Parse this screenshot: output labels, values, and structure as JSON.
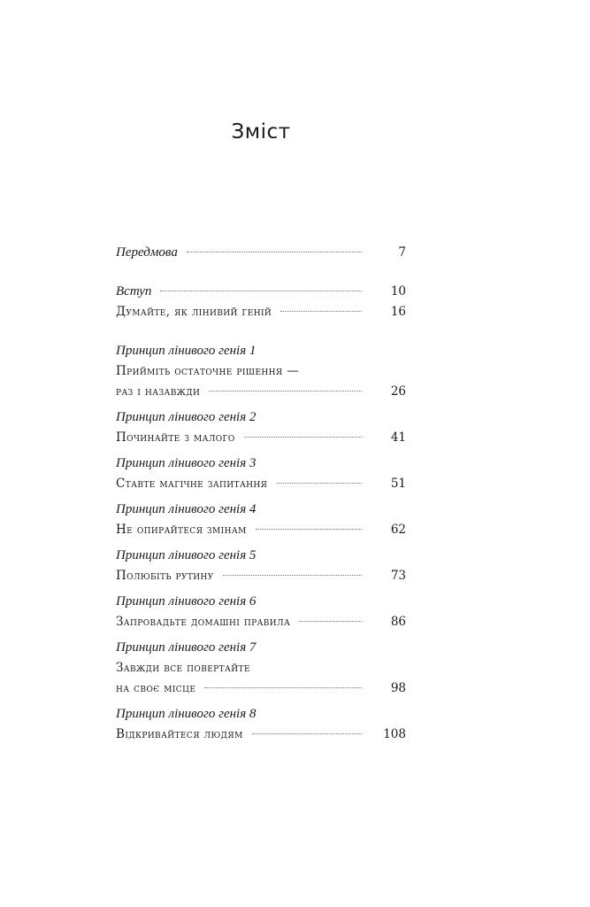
{
  "title": "Зміст",
  "groups": [
    {
      "lines": [
        {
          "text": "Передмова",
          "style": "italic",
          "page": "7"
        }
      ]
    },
    {
      "lines": [
        {
          "text": "Вступ",
          "style": "italic",
          "page": "10"
        },
        {
          "text": "Думайте, як лінивий геній",
          "style": "smallcaps",
          "page": "16"
        }
      ]
    },
    {
      "lines": [
        {
          "text": "Принцип лінивого генія 1",
          "style": "italic"
        },
        {
          "text": "Прийміть остаточне рішення —",
          "style": "smallcaps"
        },
        {
          "text": "раз і назавжди",
          "style": "smallcaps",
          "page": "26"
        }
      ]
    },
    {
      "lines": [
        {
          "text": "Принцип лінивого генія 2",
          "style": "italic"
        },
        {
          "text": "Починайте з малого",
          "style": "smallcaps",
          "page": "41"
        }
      ]
    },
    {
      "lines": [
        {
          "text": "Принцип лінивого генія 3",
          "style": "italic"
        },
        {
          "text": "Ставте магічне запитання",
          "style": "smallcaps",
          "page": "51"
        }
      ]
    },
    {
      "lines": [
        {
          "text": "Принцип лінивого генія 4",
          "style": "italic"
        },
        {
          "text": "Не опирайтеся змінам",
          "style": "smallcaps",
          "page": "62"
        }
      ]
    },
    {
      "lines": [
        {
          "text": "Принцип лінивого генія 5",
          "style": "italic"
        },
        {
          "text": "Полюбіть рутину",
          "style": "smallcaps",
          "page": "73"
        }
      ]
    },
    {
      "lines": [
        {
          "text": "Принцип лінивого генія 6",
          "style": "italic"
        },
        {
          "text": "Запровадьте домашні правила",
          "style": "smallcaps",
          "page": "86"
        }
      ]
    },
    {
      "lines": [
        {
          "text": "Принцип лінивого генія 7",
          "style": "italic"
        },
        {
          "text": "Завжди все повертайте",
          "style": "smallcaps"
        },
        {
          "text": "на своє місце",
          "style": "smallcaps",
          "page": "98"
        }
      ]
    },
    {
      "lines": [
        {
          "text": "Принцип лінивого генія 8",
          "style": "italic"
        },
        {
          "text": "Відкривайтеся людям",
          "style": "smallcaps",
          "page": "108"
        }
      ]
    }
  ]
}
